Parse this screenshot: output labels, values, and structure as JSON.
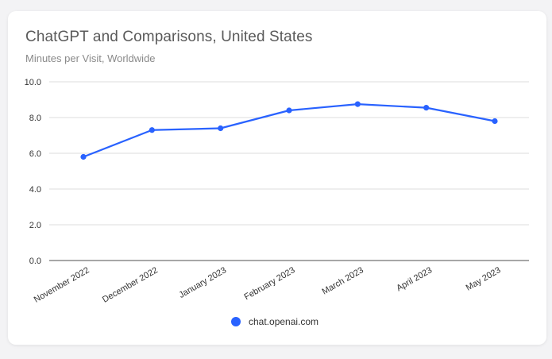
{
  "chart_data": {
    "type": "line",
    "title": "ChatGPT and Comparisons, United States",
    "subtitle": "Minutes per Visit, Worldwide",
    "categories": [
      "November 2022",
      "December 2022",
      "January 2023",
      "February 2023",
      "March 2023",
      "April 2023",
      "May 2023"
    ],
    "series": [
      {
        "name": "chat.openai.com",
        "values": [
          5.8,
          7.3,
          7.4,
          8.4,
          8.75,
          8.55,
          7.8
        ],
        "color": "#2962ff"
      }
    ],
    "yticks": [
      "0.0",
      "2.0",
      "4.0",
      "6.0",
      "8.0",
      "10.0"
    ],
    "ylim": [
      0,
      10
    ],
    "grid": true,
    "legend_position": "bottom-center"
  }
}
